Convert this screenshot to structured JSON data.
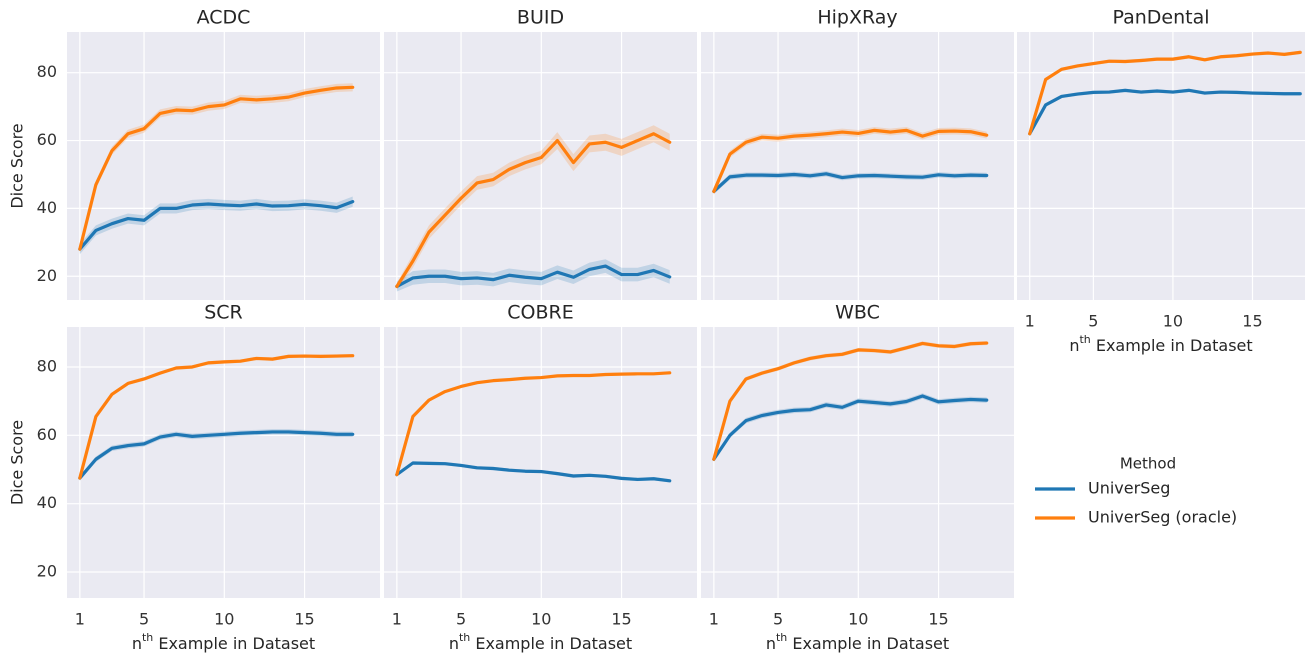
{
  "ylabel": "Dice Score",
  "xlabel": {
    "text": "n",
    "superscript": "th",
    "after": " Example in Dataset"
  },
  "legend": {
    "title": "Method",
    "position": "right"
  },
  "chart_data": [
    {
      "type": "line",
      "title": "ACDC",
      "x": [
        1,
        2,
        3,
        4,
        5,
        6,
        7,
        8,
        9,
        10,
        11,
        12,
        13,
        14,
        15,
        16,
        17,
        18
      ],
      "xlim": [
        0.2,
        19.7
      ],
      "ylim": [
        13,
        92
      ],
      "xticks": [
        1,
        5,
        10,
        15
      ],
      "yticks": [
        20,
        40,
        60,
        80
      ],
      "grid": true,
      "series": [
        {
          "name": "UniverSeg",
          "color": "#1f77b4",
          "values": [
            28,
            33.5,
            35.5,
            37,
            36.5,
            40,
            40,
            41,
            41.3,
            41,
            40.8,
            41.3,
            40.7,
            40.8,
            41.2,
            40.8,
            40.2,
            42
          ],
          "error": [
            1.5,
            1.5,
            1.5,
            1.5,
            1.5,
            1.5,
            1.5,
            1.5,
            1.5,
            1.5,
            1.5,
            1.5,
            1.5,
            1.5,
            1.5,
            1.5,
            1.5,
            1.5
          ]
        },
        {
          "name": "UniverSeg (oracle)",
          "color": "#ff7f0e",
          "values": [
            28,
            47,
            57,
            62,
            63.5,
            68,
            69,
            68.8,
            70,
            70.5,
            72.3,
            72,
            72.3,
            72.8,
            74,
            74.8,
            75.5,
            75.7
          ],
          "error": [
            1.2,
            1.2,
            1.2,
            1.2,
            1.2,
            1.2,
            1.2,
            1.2,
            1.2,
            1.2,
            1.2,
            1.2,
            1.2,
            1.2,
            1.2,
            1.2,
            1.2,
            1.2
          ]
        }
      ]
    },
    {
      "type": "line",
      "title": "BUID",
      "x": [
        1,
        2,
        3,
        4,
        5,
        6,
        7,
        8,
        9,
        10,
        11,
        12,
        13,
        14,
        15,
        16,
        17,
        18
      ],
      "xlim": [
        0.2,
        19.7
      ],
      "ylim": [
        13,
        92
      ],
      "xticks": [
        1,
        5,
        10,
        15
      ],
      "yticks": [
        20,
        40,
        60,
        80
      ],
      "grid": true,
      "series": [
        {
          "name": "UniverSeg",
          "color": "#1f77b4",
          "values": [
            17,
            19.5,
            20,
            20,
            19.3,
            19.5,
            19,
            20.3,
            19.7,
            19.3,
            21.2,
            19.7,
            22,
            23,
            20.5,
            20.5,
            21.7,
            19.8
          ],
          "error": [
            1.5,
            2,
            2,
            2,
            2,
            2,
            2,
            2,
            2,
            2,
            2,
            2,
            2,
            2,
            2,
            2,
            2,
            2
          ]
        },
        {
          "name": "UniverSeg (oracle)",
          "color": "#ff7f0e",
          "values": [
            17,
            24.5,
            33,
            38,
            43,
            47.5,
            48.5,
            51.5,
            53.5,
            55,
            60,
            53.5,
            59,
            59.5,
            58,
            60,
            62,
            59.5
          ],
          "error": [
            1,
            2,
            2,
            2,
            2,
            2,
            2,
            2,
            2,
            2,
            2.5,
            2.5,
            2.5,
            2.5,
            2.5,
            2.5,
            2.5,
            2.5
          ]
        }
      ]
    },
    {
      "type": "line",
      "title": "HipXRay",
      "x": [
        1,
        2,
        3,
        4,
        5,
        6,
        7,
        8,
        9,
        10,
        11,
        12,
        13,
        14,
        15,
        16,
        17,
        18
      ],
      "xlim": [
        0.2,
        19.7
      ],
      "ylim": [
        13,
        92
      ],
      "xticks": [
        1,
        5,
        10,
        15
      ],
      "yticks": [
        20,
        40,
        60,
        80
      ],
      "grid": true,
      "series": [
        {
          "name": "UniverSeg",
          "color": "#1f77b4",
          "values": [
            45,
            49.3,
            49.8,
            49.8,
            49.7,
            50,
            49.6,
            50.2,
            49.1,
            49.6,
            49.7,
            49.5,
            49.3,
            49.2,
            49.9,
            49.6,
            49.8,
            49.7
          ],
          "error": [
            0.8,
            0.8,
            0.8,
            0.8,
            0.8,
            0.8,
            0.8,
            0.8,
            0.8,
            0.8,
            0.8,
            0.8,
            0.8,
            0.8,
            0.8,
            0.8,
            0.8,
            0.8
          ]
        },
        {
          "name": "UniverSeg (oracle)",
          "color": "#ff7f0e",
          "values": [
            45,
            56,
            59.5,
            61,
            60.7,
            61.3,
            61.6,
            62,
            62.5,
            62.1,
            63,
            62.5,
            63,
            61.3,
            62.7,
            62.8,
            62.6,
            61.6
          ],
          "error": [
            1,
            1,
            1,
            1,
            1,
            1,
            1,
            1,
            1,
            1,
            1,
            1,
            1,
            1,
            1,
            1,
            1,
            1
          ]
        }
      ]
    },
    {
      "type": "line",
      "title": "PanDental",
      "x": [
        1,
        2,
        3,
        4,
        5,
        6,
        7,
        8,
        9,
        10,
        11,
        12,
        13,
        14,
        15,
        16,
        17,
        18
      ],
      "xlim": [
        0.2,
        18.3
      ],
      "ylim": [
        13,
        92
      ],
      "xticks": [
        1,
        5,
        10,
        15
      ],
      "yticks": [
        20,
        40,
        60,
        80
      ],
      "grid": true,
      "series": [
        {
          "name": "UniverSeg",
          "color": "#1f77b4",
          "values": [
            62,
            70.5,
            73,
            73.7,
            74.2,
            74.3,
            74.8,
            74.3,
            74.6,
            74.3,
            74.8,
            74,
            74.3,
            74.2,
            74,
            73.9,
            73.8,
            73.8
          ],
          "error": [
            0.5,
            0.5,
            0.5,
            0.5,
            0.5,
            0.5,
            0.5,
            0.5,
            0.5,
            0.5,
            0.5,
            0.5,
            0.5,
            0.5,
            0.5,
            0.5,
            0.5,
            0.5
          ]
        },
        {
          "name": "UniverSeg (oracle)",
          "color": "#ff7f0e",
          "values": [
            62,
            78,
            81,
            82,
            82.7,
            83.4,
            83.3,
            83.6,
            84,
            84,
            84.7,
            83.8,
            84.7,
            85,
            85.5,
            85.8,
            85.4,
            86
          ],
          "error": [
            0.5,
            0.5,
            0.5,
            0.5,
            0.5,
            0.5,
            0.5,
            0.5,
            0.5,
            0.5,
            0.5,
            0.5,
            0.5,
            0.5,
            0.5,
            0.5,
            0.5,
            0.5
          ]
        }
      ]
    },
    {
      "type": "line",
      "title": "SCR",
      "x": [
        1,
        2,
        3,
        4,
        5,
        6,
        7,
        8,
        9,
        10,
        11,
        12,
        13,
        14,
        15,
        16,
        17,
        18
      ],
      "xlim": [
        0.2,
        19.7
      ],
      "ylim": [
        12.4,
        91.7
      ],
      "xticks": [
        1,
        5,
        10,
        15
      ],
      "yticks": [
        20,
        40,
        60,
        80
      ],
      "grid": true,
      "series": [
        {
          "name": "UniverSeg",
          "color": "#1f77b4",
          "values": [
            47.5,
            53,
            56.2,
            57,
            57.5,
            59.5,
            60.3,
            59.7,
            60,
            60.3,
            60.6,
            60.8,
            61,
            61,
            60.8,
            60.6,
            60.3,
            60.3
          ],
          "error": [
            0.8,
            0.8,
            0.8,
            0.8,
            0.8,
            0.8,
            0.8,
            0.8,
            0.8,
            0.8,
            0.8,
            0.8,
            0.8,
            0.8,
            0.8,
            0.8,
            0.8,
            0.8
          ]
        },
        {
          "name": "UniverSeg (oracle)",
          "color": "#ff7f0e",
          "values": [
            47.5,
            65.5,
            72,
            75.2,
            76.5,
            78.2,
            79.7,
            80,
            81.2,
            81.5,
            81.7,
            82.5,
            82.3,
            83.1,
            83.2,
            83.1,
            83.2,
            83.3
          ],
          "error": [
            0.5,
            0.5,
            0.5,
            0.5,
            0.5,
            0.5,
            0.5,
            0.5,
            0.5,
            0.5,
            0.5,
            0.5,
            0.5,
            0.5,
            0.5,
            0.5,
            0.5,
            0.5
          ]
        }
      ]
    },
    {
      "type": "line",
      "title": "COBRE",
      "x": [
        1,
        2,
        3,
        4,
        5,
        6,
        7,
        8,
        9,
        10,
        11,
        12,
        13,
        14,
        15,
        16,
        17,
        18
      ],
      "xlim": [
        0.2,
        19.7
      ],
      "ylim": [
        12.4,
        91.7
      ],
      "xticks": [
        1,
        5,
        10,
        15
      ],
      "yticks": [
        20,
        40,
        60,
        80
      ],
      "grid": true,
      "series": [
        {
          "name": "UniverSeg",
          "color": "#1f77b4",
          "values": [
            48.5,
            51.9,
            51.8,
            51.7,
            51.2,
            50.5,
            50.3,
            49.8,
            49.5,
            49.4,
            48.8,
            48.1,
            48.3,
            48,
            47.4,
            47.1,
            47.3,
            46.7
          ],
          "error": [
            0.5,
            0.5,
            0.5,
            0.5,
            0.5,
            0.5,
            0.5,
            0.5,
            0.5,
            0.5,
            0.5,
            0.5,
            0.5,
            0.5,
            0.5,
            0.5,
            0.5,
            0.5
          ]
        },
        {
          "name": "UniverSeg (oracle)",
          "color": "#ff7f0e",
          "values": [
            48.5,
            65.5,
            70.3,
            72.8,
            74.3,
            75.4,
            76,
            76.3,
            76.7,
            76.9,
            77.4,
            77.5,
            77.5,
            77.8,
            77.9,
            78,
            78,
            78.3
          ],
          "error": [
            0.4,
            0.4,
            0.4,
            0.4,
            0.4,
            0.4,
            0.4,
            0.4,
            0.4,
            0.4,
            0.4,
            0.4,
            0.4,
            0.4,
            0.4,
            0.4,
            0.4,
            0.4
          ]
        }
      ]
    },
    {
      "type": "line",
      "title": "WBC",
      "x": [
        1,
        2,
        3,
        4,
        5,
        6,
        7,
        8,
        9,
        10,
        11,
        12,
        13,
        14,
        15,
        16,
        17,
        18
      ],
      "xlim": [
        0.2,
        19.7
      ],
      "ylim": [
        12.4,
        91.7
      ],
      "xticks": [
        1,
        5,
        10,
        15
      ],
      "yticks": [
        20,
        40,
        60,
        80
      ],
      "grid": true,
      "series": [
        {
          "name": "UniverSeg",
          "color": "#1f77b4",
          "values": [
            53,
            60,
            64.3,
            65.8,
            66.7,
            67.3,
            67.5,
            68.9,
            68.2,
            70,
            69.6,
            69.2,
            69.9,
            71.5,
            69.8,
            70.2,
            70.5,
            70.3
          ],
          "error": [
            0.8,
            0.8,
            0.8,
            0.8,
            0.8,
            0.8,
            0.8,
            0.8,
            0.8,
            0.8,
            0.8,
            0.8,
            0.8,
            0.8,
            0.8,
            0.8,
            0.8,
            0.8
          ]
        },
        {
          "name": "UniverSeg (oracle)",
          "color": "#ff7f0e",
          "values": [
            53,
            70,
            76.5,
            78.2,
            79.5,
            81.2,
            82.5,
            83.3,
            83.7,
            85,
            84.8,
            84.4,
            85.6,
            86.9,
            86.2,
            86,
            86.8,
            87
          ],
          "error": [
            0.6,
            0.6,
            0.6,
            0.6,
            0.6,
            0.6,
            0.6,
            0.6,
            0.6,
            0.6,
            0.6,
            0.6,
            0.6,
            0.6,
            0.6,
            0.6,
            0.6,
            0.6
          ]
        }
      ]
    }
  ]
}
